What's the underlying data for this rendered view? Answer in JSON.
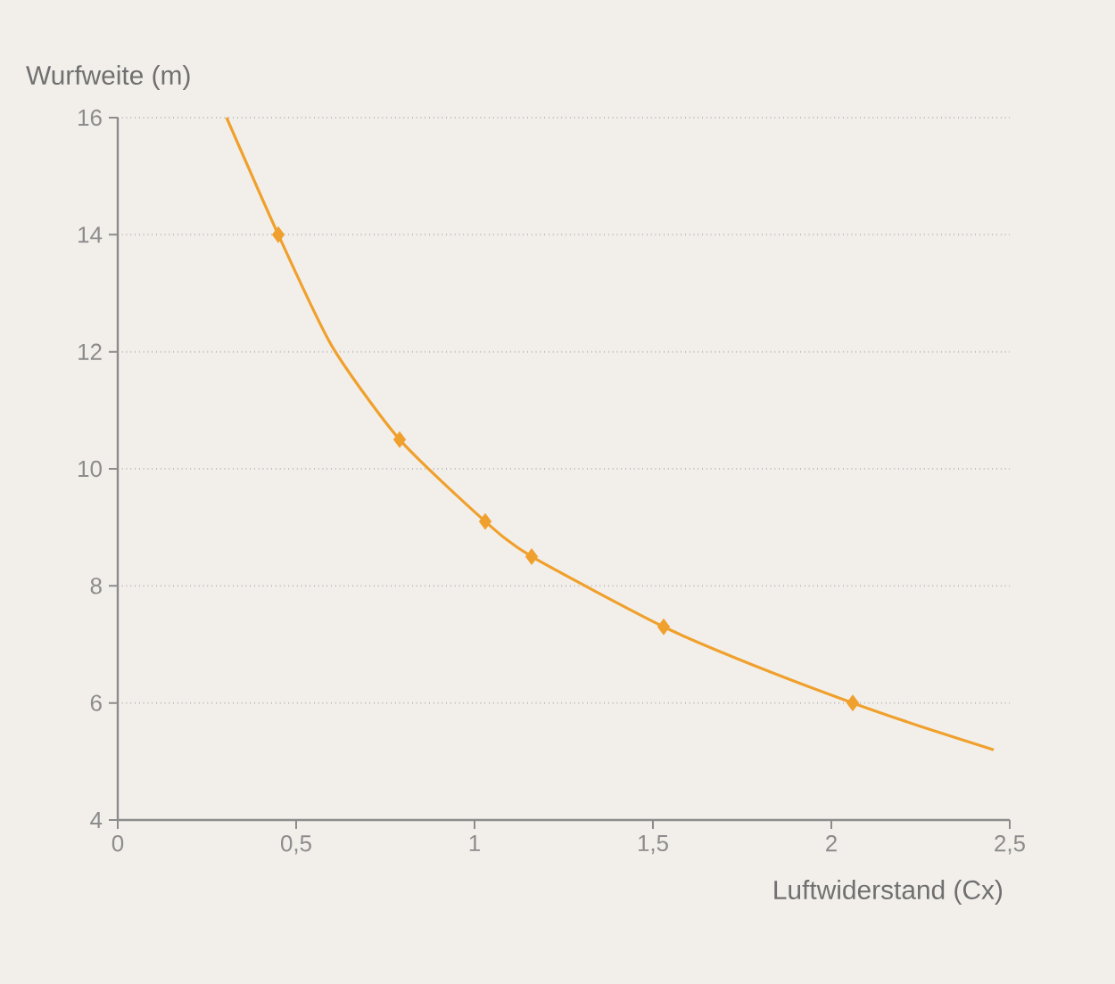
{
  "chart_data": {
    "type": "line",
    "ylabel": "Wurfweite (m)",
    "xlabel": "Luftwiderstand (Cx)",
    "xlim": [
      0,
      2.5
    ],
    "ylim": [
      4,
      16
    ],
    "xticks": [
      0,
      {
        "value": 0.5,
        "label": "0,5"
      },
      1,
      {
        "value": 1.5,
        "label": "1,5"
      },
      2,
      {
        "value": 2.5,
        "label": "2,5"
      }
    ],
    "yticks": [
      4,
      6,
      8,
      10,
      12,
      14,
      16
    ],
    "grid": "y",
    "series": [
      {
        "color": "#f0a02c",
        "x": [
          0.305,
          0.45,
          0.6,
          0.79,
          1.03,
          1.16,
          1.53,
          1.8,
          2.06,
          2.25,
          2.455
        ],
        "values": [
          16,
          14,
          12.1,
          10.5,
          9.1,
          8.5,
          7.3,
          6.6,
          6.0,
          5.6,
          5.2
        ]
      },
      {
        "type": "scatter",
        "marker": "diamond",
        "color": "#f0a02c",
        "x": [
          0.45,
          0.79,
          1.03,
          1.16,
          1.53,
          2.06
        ],
        "values": [
          14,
          10.5,
          9.1,
          8.5,
          7.3,
          6.0
        ]
      }
    ]
  }
}
